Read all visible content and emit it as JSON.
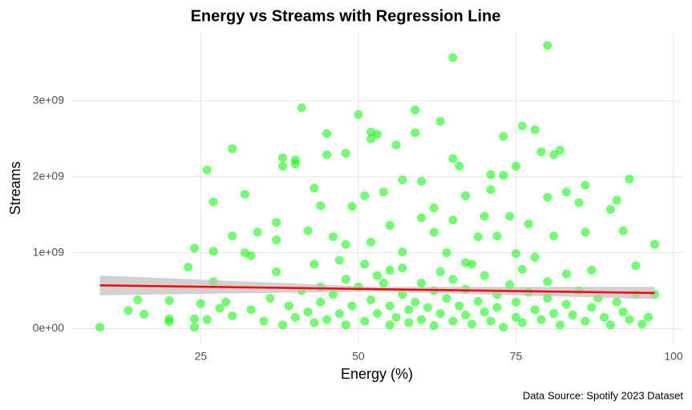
{
  "chart_data": {
    "type": "scatter",
    "title": "Energy vs Streams with Regression Line",
    "x_label": "Energy (%)",
    "y_label": "Streams",
    "caption": "Data Source: Spotify 2023 Dataset",
    "color": "#00ff00",
    "grid": true,
    "xlim": [
      4.6,
      101.4
    ],
    "xticks": [
      25,
      50,
      75,
      100
    ],
    "ylim": [
      -185000000.0,
      3885000000.0
    ],
    "yticks": [
      {
        "value": 0,
        "label": "0e+00"
      },
      {
        "value": 1000000000.0,
        "label": "1e+09"
      },
      {
        "value": 2000000000.0,
        "label": "2e+09"
      },
      {
        "value": 3000000000.0,
        "label": "3e+09"
      }
    ],
    "x": [
      65,
      80,
      41,
      50,
      59,
      63,
      30,
      45,
      52,
      53,
      59,
      76,
      78,
      73,
      52,
      56,
      45,
      48,
      38,
      40,
      38,
      40,
      26,
      82,
      79,
      81,
      66,
      65,
      75,
      71,
      73,
      93,
      57,
      60,
      32,
      43,
      27,
      51,
      54,
      71,
      83,
      86,
      67,
      80,
      44,
      49,
      91,
      90,
      85,
      62,
      60,
      74,
      70,
      65,
      77,
      55,
      37,
      30,
      34,
      42,
      46,
      62,
      69,
      72,
      81,
      92,
      86,
      37,
      52,
      97,
      48,
      24,
      27,
      32,
      57,
      64,
      75,
      78,
      33,
      23,
      43,
      47,
      94,
      51,
      67,
      27,
      83,
      87,
      37,
      55,
      9,
      13.5,
      15,
      16,
      20,
      20,
      20,
      24,
      24,
      25,
      26,
      28,
      29,
      30,
      33,
      35,
      36,
      38,
      39,
      40,
      41,
      42,
      43,
      44,
      45,
      46,
      47,
      48,
      49,
      50,
      51,
      52,
      53,
      54,
      55,
      55,
      56,
      57,
      58,
      58,
      59,
      60,
      60,
      61,
      62,
      62,
      63,
      64,
      65,
      65,
      66,
      67,
      67,
      68,
      69,
      70,
      70,
      71,
      72,
      72,
      73,
      74,
      75,
      75,
      76,
      77,
      78,
      79,
      80,
      80,
      81,
      82,
      83,
      84,
      85,
      86,
      87,
      88,
      89,
      90,
      91,
      92,
      93,
      94,
      95,
      96,
      97,
      53,
      57,
      63,
      68,
      76,
      48,
      44
    ],
    "values": [
      3570000000.0,
      3730000000.0,
      2910000000.0,
      2820000000.0,
      2880000000.0,
      2730000000.0,
      2370000000.0,
      2570000000.0,
      2590000000.0,
      2560000000.0,
      2580000000.0,
      2670000000.0,
      2620000000.0,
      2530000000.0,
      2500000000.0,
      2420000000.0,
      2290000000.0,
      2310000000.0,
      2250000000.0,
      2220000000.0,
      2140000000.0,
      2170000000.0,
      2090000000.0,
      2350000000.0,
      2330000000.0,
      2290000000.0,
      2140000000.0,
      2240000000.0,
      2140000000.0,
      2030000000.0,
      2020000000.0,
      1970000000.0,
      1960000000.0,
      1940000000.0,
      1770000000.0,
      1850000000.0,
      1670000000.0,
      1750000000.0,
      1800000000.0,
      1830000000.0,
      1800000000.0,
      1890000000.0,
      1750000000.0,
      1730000000.0,
      1620000000.0,
      1610000000.0,
      1690000000.0,
      1570000000.0,
      1660000000.0,
      1590000000.0,
      1460000000.0,
      1480000000.0,
      1480000000.0,
      1430000000.0,
      1380000000.0,
      1360000000.0,
      1400000000.0,
      1220000000.0,
      1270000000.0,
      1290000000.0,
      1210000000.0,
      1270000000.0,
      1210000000.0,
      1220000000.0,
      1220000000.0,
      1290000000.0,
      1270000000.0,
      1170000000.0,
      1140000000.0,
      1110000000.0,
      1110000000.0,
      1060000000.0,
      1020000000.0,
      1000000000.0,
      1010000000.0,
      1000000000.0,
      990000000.0,
      940000000.0,
      960000000.0,
      810000000.0,
      850000000.0,
      900000000.0,
      830000000.0,
      850000000.0,
      870000000.0,
      620000000.0,
      720000000.0,
      770000000.0,
      750000000.0,
      770000000.0,
      20000000.0,
      240000000.0,
      380000000.0,
      190000000.0,
      370000000.0,
      130000000.0,
      90000000.0,
      130000000.0,
      20000000.0,
      330000000.0,
      120000000.0,
      270000000.0,
      350000000.0,
      170000000.0,
      250000000.0,
      100000000.0,
      400000000.0,
      50000000.0,
      300000000.0,
      150000000.0,
      500000000.0,
      220000000.0,
      80000000.0,
      350000000.0,
      120000000.0,
      450000000.0,
      200000000.0,
      50000000.0,
      300000000.0,
      550000000.0,
      100000000.0,
      380000000.0,
      200000000.0,
      600000000.0,
      50000000.0,
      300000000.0,
      150000000.0,
      450000000.0,
      250000000.0,
      80000000.0,
      350000000.0,
      600000000.0,
      120000000.0,
      280000000.0,
      500000000.0,
      40000000.0,
      200000000.0,
      400000000.0,
      100000000.0,
      650000000.0,
      300000000.0,
      180000000.0,
      520000000.0,
      60000000.0,
      360000000.0,
      220000000.0,
      700000000.0,
      100000000.0,
      450000000.0,
      280000000.0,
      20000000.0,
      580000000.0,
      150000000.0,
      350000000.0,
      80000000.0,
      480000000.0,
      250000000.0,
      120000000.0,
      400000000.0,
      620000000.0,
      200000000.0,
      50000000.0,
      320000000.0,
      180000000.0,
      500000000.0,
      100000000.0,
      280000000.0,
      400000000.0,
      150000000.0,
      50000000.0,
      350000000.0,
      220000000.0,
      120000000.0,
      450000000.0,
      60000000.0,
      150000000.0,
      450000000.0,
      700000000.0,
      800000000.0,
      750000000.0,
      850000000.0,
      780000000.0,
      650000000.0,
      550000000.0
    ],
    "regression": {
      "color": "#ff0000",
      "band_color": "#bebebe",
      "x": [
        9,
        53,
        97
      ],
      "values": [
        570000000.0,
        520000000.0,
        470000000.0
      ],
      "ci_lower": [
        440000000.0,
        490000000.0,
        390000000.0
      ],
      "ci_upper": [
        700000000.0,
        550000000.0,
        550000000.0
      ]
    }
  }
}
